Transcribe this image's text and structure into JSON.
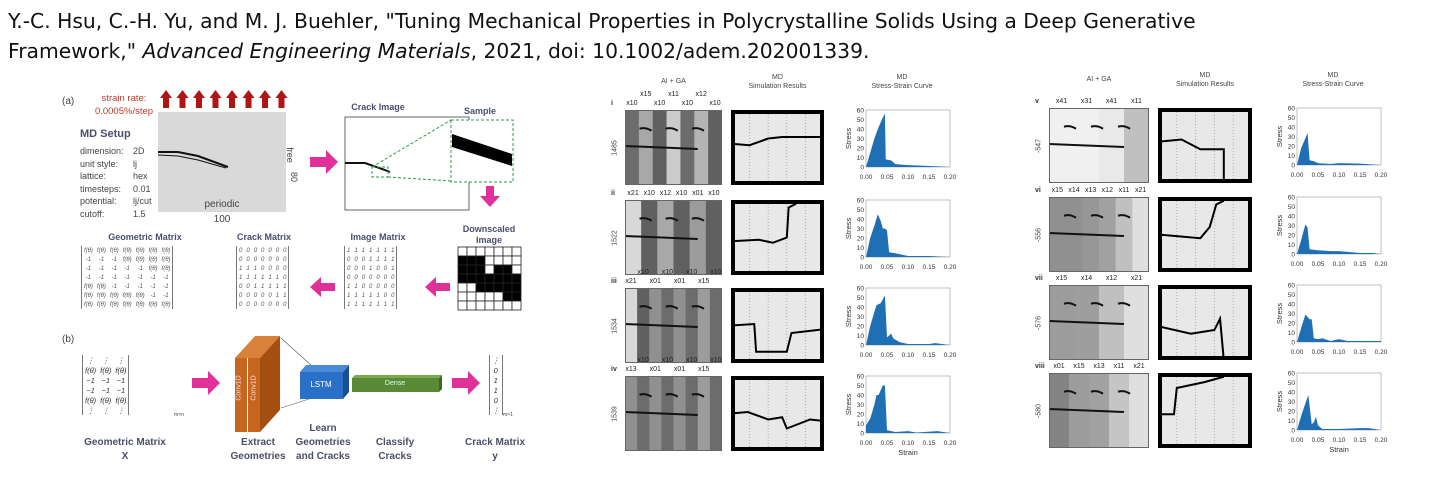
{
  "citation": {
    "line1": "Y.-C. Hsu, C.-H. Yu, and M. J. Buehler, \"Tuning Mechanical Properties in Polycrystalline Solids Using a Deep Generative",
    "line2_start": "Framework,\" ",
    "journal": "Advanced Engineering Materials",
    "line2_end": ", 2021, doi: 10.1002/adem.202001339."
  },
  "panel_a": {
    "label": "(a)",
    "strain_rate_label": "strain rate:",
    "strain_rate_value": "0.0005%/step",
    "md_setup_title": "MD Setup",
    "md_setup": [
      {
        "key": "dimension:",
        "value": "2D"
      },
      {
        "key": "unit style:",
        "value": "lj"
      },
      {
        "key": "lattice:",
        "value": "hex"
      },
      {
        "key": "timesteps:",
        "value": "0.01"
      },
      {
        "key": "potential:",
        "value": "lj/cut"
      },
      {
        "key": "cutoff:",
        "value": "1.5"
      }
    ],
    "box_top_bc": "free",
    "box_height": "80",
    "box_bottom_bc": "periodic",
    "box_width": "100",
    "crack_image_title": "Crack Image",
    "sample_title": "Sample",
    "downscaled_title_1": "Downscaled",
    "downscaled_title_2": "Image",
    "image_matrix_title": "Image Matrix",
    "crack_matrix_title": "Crack Matrix",
    "geometric_matrix_title": "Geometric Matrix",
    "image_matrix": [
      [
        1,
        1,
        1,
        1,
        1,
        1,
        1
      ],
      [
        0,
        0,
        0,
        1,
        1,
        1,
        1
      ],
      [
        0,
        0,
        0,
        1,
        0,
        0,
        1
      ],
      [
        0,
        0,
        0,
        0,
        0,
        0,
        0
      ],
      [
        1,
        1,
        0,
        0,
        0,
        0,
        0
      ],
      [
        1,
        1,
        1,
        1,
        1,
        0,
        0
      ],
      [
        1,
        1,
        1,
        1,
        1,
        1,
        1
      ]
    ],
    "crack_matrix": [
      [
        0,
        0,
        0,
        0,
        0,
        0,
        0
      ],
      [
        0,
        0,
        0,
        0,
        0,
        0,
        0
      ],
      [
        1,
        1,
        1,
        0,
        0,
        0,
        0
      ],
      [
        1,
        1,
        1,
        1,
        1,
        1,
        0
      ],
      [
        0,
        0,
        1,
        1,
        1,
        1,
        1
      ],
      [
        0,
        0,
        0,
        0,
        0,
        1,
        1
      ],
      [
        0,
        0,
        0,
        0,
        0,
        0,
        0
      ]
    ],
    "geometric_matrix": [
      [
        "f(θ)",
        "f(θ)",
        "f(θ)",
        "f(θ)",
        "f(θ)",
        "f(θ)",
        "f(θ)"
      ],
      [
        "-1",
        "-1",
        "-1",
        "f(θ)",
        "f(θ)",
        "f(θ)",
        "f(θ)"
      ],
      [
        "-1",
        "-1",
        "-1",
        "-1",
        "-1",
        "f(θ)",
        "f(θ)"
      ],
      [
        "-1",
        "-1",
        "-1",
        "-1",
        "-1",
        "-1",
        "-1"
      ],
      [
        "f(θ)",
        "f(θ)",
        "-1",
        "-1",
        "-1",
        "-1",
        "-1"
      ],
      [
        "f(θ)",
        "f(θ)",
        "f(θ)",
        "f(θ)",
        "f(θ)",
        "-1",
        "-1"
      ],
      [
        "f(θ)",
        "f(θ)",
        "f(θ)",
        "f(θ)",
        "f(θ)",
        "f(θ)",
        "f(θ)"
      ]
    ]
  },
  "panel_b": {
    "label": "(b)",
    "x_matrix": [
      [
        "⋮",
        "⋮",
        "⋮"
      ],
      [
        "f(θ)",
        "f(θ)",
        "f(θ)"
      ],
      [
        "−1",
        "−1",
        "−1"
      ],
      [
        "−1",
        "−1",
        "−1"
      ],
      [
        "f(θ)",
        "f(θ)",
        "f(θ)"
      ],
      [
        "⋮",
        "⋮",
        "⋮"
      ]
    ],
    "x_matrix_dim": "m×n",
    "y_vector": [
      "⋮",
      "0",
      "1",
      "1",
      "0",
      "⋮"
    ],
    "y_vector_dim": "m×1",
    "conv_label": "Conv1D",
    "lstm_label": "LSTM",
    "dense_label": "Dense",
    "captions": [
      {
        "l1": "Geometric Matrix",
        "l2": "X"
      },
      {
        "l1": "Extract",
        "l2": "Geometries"
      },
      {
        "l0": "Learn",
        "l1": "Geometries",
        "l2": "and Cracks"
      },
      {
        "l1": "Classify",
        "l2": "Cracks"
      },
      {
        "l1": "Crack Matrix",
        "l2": "y"
      }
    ]
  },
  "results": {
    "col_ai_ga": "AI + GA",
    "col_md": "MD",
    "col_sim": "Simulation Results",
    "col_curve": "Stress-Strain Curve",
    "stress_label": "Stress",
    "strain_label": "Strain"
  },
  "chart_data": [
    {
      "type": "area",
      "id": "i",
      "design_value": "1485",
      "segments": [
        "x10",
        "x15",
        "x10",
        "x11",
        "x10",
        "x12",
        "x10"
      ],
      "xlabel": "",
      "ylabel": "Stress",
      "xlim": [
        0,
        0.2
      ],
      "ylim": [
        0,
        60
      ],
      "xticks": [
        "0.00",
        "0.05",
        "0.10",
        "0.15",
        "0.20"
      ],
      "yticks": [
        "0",
        "10",
        "20",
        "30",
        "40",
        "50",
        "60"
      ],
      "x": [
        0,
        0.01,
        0.02,
        0.03,
        0.04,
        0.045,
        0.047,
        0.06,
        0.07,
        0.1,
        0.13,
        0.15,
        0.18,
        0.2
      ],
      "y": [
        0,
        15,
        30,
        42,
        52,
        56,
        8,
        7,
        3,
        2,
        1.5,
        1,
        0.5,
        0
      ]
    },
    {
      "type": "area",
      "id": "ii",
      "design_value": "1522",
      "segments": [
        "x21",
        "x10",
        "x12",
        "x10",
        "x01",
        "x10"
      ],
      "xlabel": "",
      "ylabel": "Stress",
      "xlim": [
        0,
        0.2
      ],
      "ylim": [
        0,
        60
      ],
      "xticks": [
        "0.00",
        "0.05",
        "0.10",
        "0.15",
        "0.20"
      ],
      "yticks": [
        "0",
        "10",
        "20",
        "30",
        "40",
        "50",
        "60"
      ],
      "x": [
        0,
        0.01,
        0.02,
        0.028,
        0.035,
        0.04,
        0.045,
        0.05,
        0.055,
        0.07,
        0.1,
        0.15,
        0.2
      ],
      "y": [
        0,
        20,
        33,
        45,
        38,
        30,
        30,
        28,
        5,
        4,
        1,
        1,
        0
      ]
    },
    {
      "type": "area",
      "id": "iii",
      "design_value": "1534",
      "segments": [
        "x21",
        "x10",
        "x01",
        "x10",
        "x01",
        "x10",
        "x15",
        "x10"
      ],
      "xlabel": "",
      "ylabel": "Stress",
      "xlim": [
        0,
        0.2
      ],
      "ylim": [
        0,
        60
      ],
      "xticks": [
        "0.00",
        "0.05",
        "0.10",
        "0.15",
        "0.20"
      ],
      "yticks": [
        "0",
        "10",
        "20",
        "30",
        "40",
        "50",
        "60"
      ],
      "x": [
        0,
        0.01,
        0.02,
        0.025,
        0.035,
        0.045,
        0.05,
        0.06,
        0.065,
        0.08,
        0.1,
        0.15,
        0.165,
        0.2
      ],
      "y": [
        0,
        20,
        35,
        42,
        44,
        52,
        8,
        12,
        7,
        3,
        1,
        1,
        2,
        0
      ]
    },
    {
      "type": "area",
      "id": "iv",
      "design_value": "1539",
      "segments": [
        "x13",
        "x10",
        "x01",
        "x10",
        "x01",
        "x10",
        "x15",
        "x10"
      ],
      "xlabel": "Strain",
      "ylabel": "Stress",
      "xlim": [
        0,
        0.2
      ],
      "ylim": [
        0,
        60
      ],
      "xticks": [
        "0.00",
        "0.05",
        "0.10",
        "0.15",
        "0.20"
      ],
      "yticks": [
        "0",
        "10",
        "20",
        "30",
        "40",
        "50",
        "60"
      ],
      "x": [
        0,
        0.01,
        0.02,
        0.025,
        0.03,
        0.04,
        0.045,
        0.05,
        0.07,
        0.1,
        0.12,
        0.17,
        0.2
      ],
      "y": [
        8,
        15,
        30,
        40,
        40,
        50,
        50,
        3,
        1,
        2,
        0.5,
        2,
        0
      ]
    },
    {
      "type": "area",
      "id": "v",
      "design_value": "-547",
      "segments": [
        "x41",
        "x31",
        "x41",
        "x11"
      ],
      "xlabel": "",
      "ylabel": "Stress",
      "xlim": [
        0,
        0.2
      ],
      "ylim": [
        0,
        60
      ],
      "xticks": [
        "0.00",
        "0.05",
        "0.10",
        "0.15",
        "0.20"
      ],
      "yticks": [
        "0",
        "10",
        "20",
        "30",
        "40",
        "50",
        "60"
      ],
      "x": [
        0,
        0.01,
        0.02,
        0.025,
        0.03,
        0.04,
        0.05,
        0.08,
        0.1,
        0.15,
        0.2
      ],
      "y": [
        0,
        18,
        28,
        34,
        5,
        4,
        2,
        1,
        2,
        1.5,
        0
      ]
    },
    {
      "type": "area",
      "id": "vi",
      "design_value": "-556",
      "segments": [
        "x15",
        "x14",
        "x13",
        "x12",
        "x11",
        "x21"
      ],
      "xlabel": "",
      "ylabel": "Stress",
      "xlim": [
        0,
        0.2
      ],
      "ylim": [
        0,
        60
      ],
      "xticks": [
        "0.00",
        "0.05",
        "0.10",
        "0.15",
        "0.20"
      ],
      "yticks": [
        "0",
        "10",
        "20",
        "30",
        "40",
        "50",
        "60"
      ],
      "x": [
        0,
        0.01,
        0.02,
        0.025,
        0.03,
        0.05,
        0.08,
        0.1,
        0.15,
        0.18,
        0.2
      ],
      "y": [
        0,
        15,
        31,
        28,
        5,
        4,
        3,
        3,
        1,
        1,
        0
      ]
    },
    {
      "type": "area",
      "id": "vii",
      "design_value": "-576",
      "segments": [
        "x15",
        "x14",
        "x12",
        "x21"
      ],
      "xlabel": "",
      "ylabel": "Stress",
      "xlim": [
        0,
        0.2
      ],
      "ylim": [
        0,
        60
      ],
      "xticks": [
        "0.00",
        "0.05",
        "0.10",
        "0.15",
        "0.20"
      ],
      "yticks": [
        "0",
        "10",
        "20",
        "30",
        "40",
        "50",
        "60"
      ],
      "x": [
        0,
        0.01,
        0.02,
        0.03,
        0.035,
        0.04,
        0.05,
        0.06,
        0.08,
        0.1,
        0.12,
        0.15,
        0.2
      ],
      "y": [
        0,
        15,
        29,
        24,
        24,
        4,
        3,
        4,
        1,
        3,
        1,
        1,
        1
      ]
    },
    {
      "type": "area",
      "id": "viii",
      "design_value": "-580",
      "segments": [
        "x01",
        "x15",
        "x13",
        "x11",
        "x21"
      ],
      "xlabel": "Strain",
      "ylabel": "Stress",
      "xlim": [
        0,
        0.2
      ],
      "ylim": [
        0,
        60
      ],
      "xticks": [
        "0.00",
        "0.05",
        "0.10",
        "0.15",
        "0.20"
      ],
      "yticks": [
        "0",
        "10",
        "20",
        "30",
        "40",
        "50",
        "60"
      ],
      "x": [
        0,
        0.01,
        0.02,
        0.027,
        0.035,
        0.04,
        0.045,
        0.05,
        0.06,
        0.1,
        0.15,
        0.17,
        0.2
      ],
      "y": [
        0,
        15,
        28,
        37,
        6,
        8,
        14,
        5,
        1,
        1,
        2,
        2,
        0
      ]
    }
  ]
}
